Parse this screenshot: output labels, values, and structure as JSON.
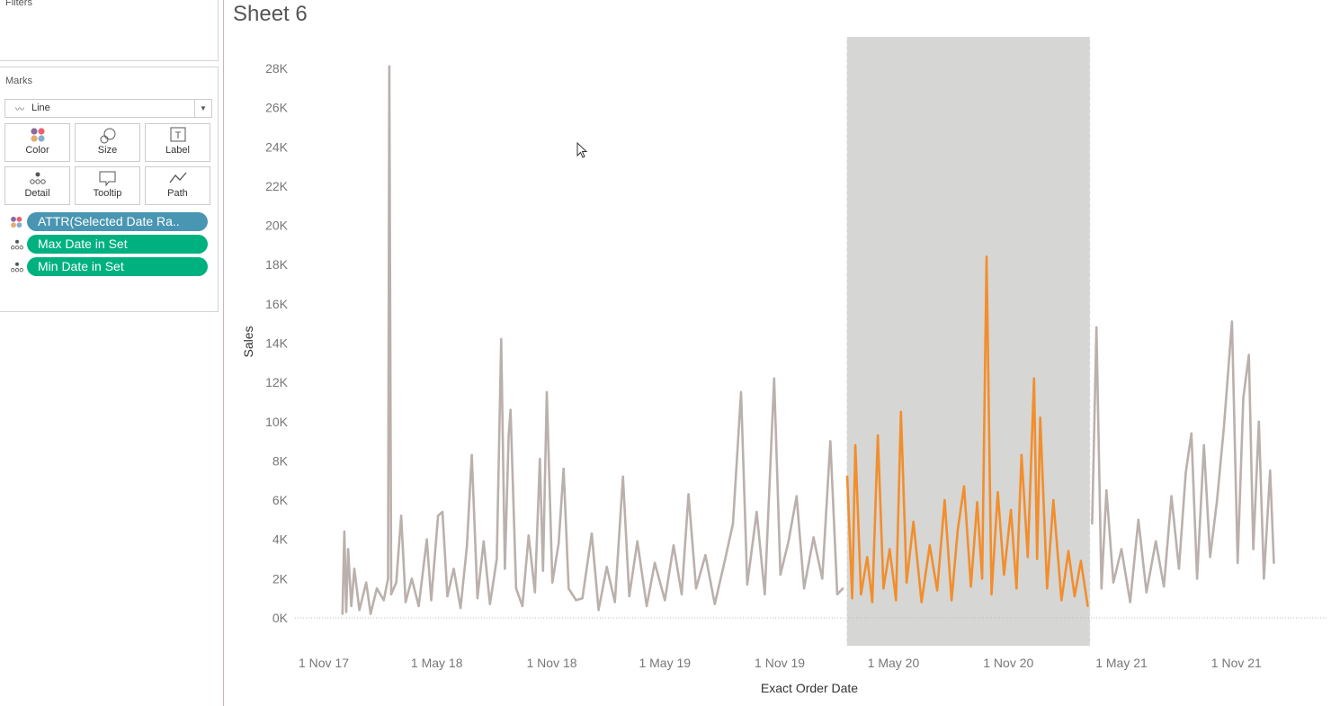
{
  "panels": {
    "filters_title": "Filters",
    "marks_title": "Marks",
    "mark_type": "Line",
    "mark_buttons": [
      {
        "label": "Color",
        "icon": "color-dots-icon"
      },
      {
        "label": "Size",
        "icon": "size-icon"
      },
      {
        "label": "Label",
        "icon": "label-icon"
      },
      {
        "label": "Detail",
        "icon": "detail-icon"
      },
      {
        "label": "Tooltip",
        "icon": "tooltip-icon"
      },
      {
        "label": "Path",
        "icon": "path-icon"
      }
    ],
    "pills": [
      {
        "label": "ATTR(Selected Date Ra..",
        "icon": "color-dots-icon",
        "color": "#4996b2"
      },
      {
        "label": "Max Date in Set",
        "icon": "detail-icon",
        "color": "#00b180"
      },
      {
        "label": "Min Date in Set",
        "icon": "detail-icon",
        "color": "#00b180"
      }
    ]
  },
  "sheet_title": "Sheet 6",
  "chart_data": {
    "type": "line",
    "xlabel": "Exact Order Date",
    "ylabel": "Sales",
    "y_ticks": [
      "0K",
      "2K",
      "4K",
      "6K",
      "8K",
      "10K",
      "12K",
      "14K",
      "16K",
      "18K",
      "20K",
      "22K",
      "24K",
      "26K",
      "28K"
    ],
    "x_ticks": [
      "1 Nov 17",
      "1 May 18",
      "1 Nov 18",
      "1 May 19",
      "1 Nov 19",
      "1 May 20",
      "1 Nov 20",
      "1 May 21",
      "1 Nov 21"
    ],
    "x_tick_dates": [
      "2017-11-01",
      "2018-05-01",
      "2018-11-01",
      "2019-05-01",
      "2019-11-01",
      "2020-05-01",
      "2020-11-01",
      "2021-05-01",
      "2021-11-01"
    ],
    "ylim": [
      0,
      28000
    ],
    "grid": false,
    "selected_range": [
      "2020-02-16",
      "2021-03-12"
    ],
    "colors": {
      "selected": "#f28e2b",
      "unselected": "#bab0ac",
      "band": "#d6d6d5"
    },
    "points": [
      [
        "2017-12-01",
        200
      ],
      [
        "2017-12-04",
        4400
      ],
      [
        "2017-12-07",
        300
      ],
      [
        "2017-12-10",
        3500
      ],
      [
        "2017-12-15",
        600
      ],
      [
        "2017-12-20",
        2500
      ],
      [
        "2017-12-28",
        400
      ],
      [
        "2018-01-08",
        1800
      ],
      [
        "2018-01-15",
        200
      ],
      [
        "2018-01-25",
        1500
      ],
      [
        "2018-02-05",
        900
      ],
      [
        "2018-02-12",
        2000
      ],
      [
        "2018-02-14",
        28100
      ],
      [
        "2018-02-17",
        1200
      ],
      [
        "2018-02-25",
        1800
      ],
      [
        "2018-03-05",
        5200
      ],
      [
        "2018-03-12",
        800
      ],
      [
        "2018-03-22",
        2000
      ],
      [
        "2018-04-02",
        600
      ],
      [
        "2018-04-15",
        4000
      ],
      [
        "2018-04-22",
        900
      ],
      [
        "2018-05-03",
        5200
      ],
      [
        "2018-05-10",
        5400
      ],
      [
        "2018-05-18",
        1100
      ],
      [
        "2018-05-28",
        2500
      ],
      [
        "2018-06-08",
        500
      ],
      [
        "2018-06-18",
        3600
      ],
      [
        "2018-06-26",
        8300
      ],
      [
        "2018-07-05",
        1000
      ],
      [
        "2018-07-15",
        3900
      ],
      [
        "2018-07-25",
        700
      ],
      [
        "2018-08-05",
        3000
      ],
      [
        "2018-08-12",
        14200
      ],
      [
        "2018-08-18",
        2500
      ],
      [
        "2018-08-24",
        9300
      ],
      [
        "2018-08-27",
        10600
      ],
      [
        "2018-09-05",
        1500
      ],
      [
        "2018-09-15",
        600
      ],
      [
        "2018-09-25",
        4200
      ],
      [
        "2018-10-05",
        1300
      ],
      [
        "2018-10-13",
        8100
      ],
      [
        "2018-10-18",
        2400
      ],
      [
        "2018-10-24",
        11500
      ],
      [
        "2018-11-02",
        1800
      ],
      [
        "2018-11-12",
        3800
      ],
      [
        "2018-11-20",
        7600
      ],
      [
        "2018-11-28",
        1500
      ],
      [
        "2018-12-10",
        900
      ],
      [
        "2018-12-20",
        1000
      ],
      [
        "2019-01-04",
        4300
      ],
      [
        "2019-01-15",
        400
      ],
      [
        "2019-01-28",
        2600
      ],
      [
        "2019-02-10",
        800
      ],
      [
        "2019-02-23",
        7200
      ],
      [
        "2019-03-05",
        1100
      ],
      [
        "2019-03-18",
        3900
      ],
      [
        "2019-04-02",
        600
      ],
      [
        "2019-04-15",
        2800
      ],
      [
        "2019-05-01",
        900
      ],
      [
        "2019-05-15",
        3700
      ],
      [
        "2019-05-28",
        1200
      ],
      [
        "2019-06-08",
        6300
      ],
      [
        "2019-06-20",
        1500
      ],
      [
        "2019-07-05",
        3200
      ],
      [
        "2019-07-20",
        700
      ],
      [
        "2019-08-05",
        2900
      ],
      [
        "2019-08-18",
        4800
      ],
      [
        "2019-08-31",
        11500
      ],
      [
        "2019-09-10",
        1700
      ],
      [
        "2019-09-25",
        5400
      ],
      [
        "2019-10-08",
        1200
      ],
      [
        "2019-10-23",
        12200
      ],
      [
        "2019-11-02",
        2200
      ],
      [
        "2019-11-15",
        3900
      ],
      [
        "2019-11-28",
        6200
      ],
      [
        "2019-12-10",
        1500
      ],
      [
        "2019-12-25",
        4100
      ],
      [
        "2020-01-08",
        2000
      ],
      [
        "2020-01-21",
        9000
      ],
      [
        "2020-02-01",
        1200
      ],
      [
        "2020-02-10",
        1500
      ],
      [
        "2020-02-17",
        7200
      ],
      [
        "2020-02-25",
        1000
      ],
      [
        "2020-03-01",
        8800
      ],
      [
        "2020-03-10",
        1200
      ],
      [
        "2020-03-20",
        3100
      ],
      [
        "2020-03-28",
        800
      ],
      [
        "2020-04-06",
        9300
      ],
      [
        "2020-04-15",
        1500
      ],
      [
        "2020-04-25",
        3500
      ],
      [
        "2020-05-05",
        900
      ],
      [
        "2020-05-13",
        10500
      ],
      [
        "2020-05-22",
        1800
      ],
      [
        "2020-06-02",
        4900
      ],
      [
        "2020-06-15",
        800
      ],
      [
        "2020-06-28",
        3700
      ],
      [
        "2020-07-10",
        1400
      ],
      [
        "2020-07-22",
        6000
      ],
      [
        "2020-08-02",
        900
      ],
      [
        "2020-08-12",
        4500
      ],
      [
        "2020-08-22",
        6700
      ],
      [
        "2020-09-02",
        1600
      ],
      [
        "2020-09-12",
        5900
      ],
      [
        "2020-09-20",
        2000
      ],
      [
        "2020-09-27",
        18400
      ],
      [
        "2020-10-05",
        1200
      ],
      [
        "2020-10-15",
        6400
      ],
      [
        "2020-10-25",
        2200
      ],
      [
        "2020-11-05",
        5500
      ],
      [
        "2020-11-14",
        1500
      ],
      [
        "2020-11-22",
        8300
      ],
      [
        "2020-12-02",
        3100
      ],
      [
        "2020-12-12",
        12200
      ],
      [
        "2020-12-17",
        3000
      ],
      [
        "2020-12-22",
        10200
      ],
      [
        "2021-01-02",
        1500
      ],
      [
        "2021-01-12",
        6000
      ],
      [
        "2021-01-25",
        900
      ],
      [
        "2021-02-05",
        3400
      ],
      [
        "2021-02-15",
        1100
      ],
      [
        "2021-02-25",
        2900
      ],
      [
        "2021-03-08",
        600
      ],
      [
        "2021-03-15",
        4800
      ],
      [
        "2021-03-22",
        14800
      ],
      [
        "2021-03-30",
        1500
      ],
      [
        "2021-04-07",
        6500
      ],
      [
        "2021-04-18",
        1800
      ],
      [
        "2021-05-01",
        3500
      ],
      [
        "2021-05-15",
        800
      ],
      [
        "2021-05-28",
        5000
      ],
      [
        "2021-06-10",
        1300
      ],
      [
        "2021-06-25",
        3900
      ],
      [
        "2021-07-08",
        1600
      ],
      [
        "2021-07-20",
        6200
      ],
      [
        "2021-08-01",
        2500
      ],
      [
        "2021-08-12",
        7400
      ],
      [
        "2021-08-21",
        9400
      ],
      [
        "2021-08-30",
        2000
      ],
      [
        "2021-09-10",
        8800
      ],
      [
        "2021-09-20",
        3100
      ],
      [
        "2021-10-01",
        6000
      ],
      [
        "2021-10-12",
        9700
      ],
      [
        "2021-10-25",
        15100
      ],
      [
        "2021-11-03",
        2800
      ],
      [
        "2021-11-12",
        11200
      ],
      [
        "2021-11-21",
        13400
      ],
      [
        "2021-11-28",
        3500
      ],
      [
        "2021-12-07",
        10000
      ],
      [
        "2021-12-15",
        2000
      ],
      [
        "2021-12-25",
        7500
      ],
      [
        "2021-12-31",
        2800
      ]
    ]
  }
}
